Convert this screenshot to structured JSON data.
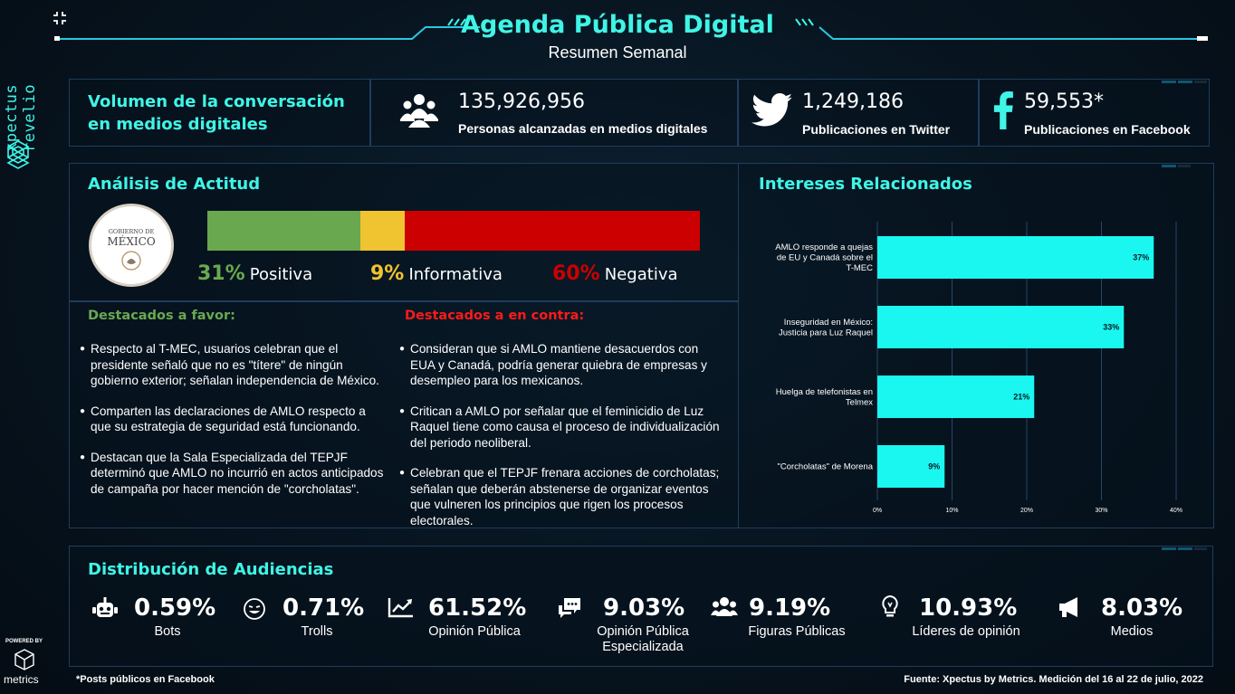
{
  "brand": {
    "name": "xpectus revelio",
    "powered_by": "POWERED BY",
    "partner": "metrics"
  },
  "header": {
    "title": "Agenda Pública Digital",
    "subtitle": "Resumen Semanal"
  },
  "volume": {
    "heading_line1": "Volumen de la conversación",
    "heading_line2": "en medios digitales",
    "reach": {
      "value": "135,926,956",
      "label": "Personas alcanzadas en medios digitales",
      "icon": "people-group-icon"
    },
    "twitter": {
      "value": "1,249,186",
      "label": "Publicaciones en Twitter",
      "icon": "twitter-icon"
    },
    "facebook": {
      "value": "59,553*",
      "label": "Publicaciones en Facebook",
      "icon": "facebook-icon"
    }
  },
  "attitude": {
    "heading": "Análisis de Actitud",
    "seal_line1": "GOBIERNO DE",
    "seal_line2": "MÉXICO",
    "positive": {
      "pct": "31%",
      "label": "Positiva",
      "value": 31,
      "color": "#6aa84f"
    },
    "informative": {
      "pct": "9%",
      "label": "Informativa",
      "value": 9,
      "color": "#f0c330"
    },
    "negative": {
      "pct": "60%",
      "label": "Negativa",
      "value": 60,
      "color": "#cc0000"
    },
    "favor_heading": "Destacados a favor:",
    "against_heading": "Destacados a en contra:",
    "favor_items": [
      "Respecto al T-MEC, usuarios celebran que el presidente señaló que no es \"títere\" de ningún gobierno exterior; señalan independencia de México.",
      "Comparten las declaraciones de AMLO respecto a que su estrategia de seguridad está funcionando.",
      "Destacan que la Sala Especializada del TEPJF determinó que AMLO no incurrió en actos anticipados de campaña por hacer mención de \"corcholatas\"."
    ],
    "against_items": [
      "Consideran que si AMLO mantiene desacuerdos con EUA y Canadá, podría generar quiebra de empresas y desempleo para los mexicanos.",
      "Critican a AMLO por señalar que el feminicidio de Luz Raquel tiene como causa el proceso de individualización del periodo neoliberal.",
      "Celebran que el TEPJF frenara acciones de corcholatas; señalan que deberán abstenerse de organizar eventos que vulneren los principios que rigen los procesos electorales."
    ]
  },
  "interests": {
    "heading": "Intereses Relacionados"
  },
  "chart_data": {
    "type": "bar",
    "orientation": "horizontal",
    "categories": [
      "AMLO responde a quejas de EU y Canadá sobre el T-MEC",
      "Inseguridad en México: Justicia para Luz Raquel",
      "Huelga de telefonistas en Telmex",
      "\"Corcholatas\" de Morena"
    ],
    "category_lines": [
      [
        "AMLO responde a quejas",
        "de EU y Canadá sobre el",
        "T-MEC"
      ],
      [
        "Inseguridad en México:",
        "Justicia para Luz Raquel"
      ],
      [
        "Huelga de telefonistas en",
        "Telmex"
      ],
      [
        "\"Corcholatas\" de Morena"
      ]
    ],
    "values": [
      37,
      33,
      21,
      9
    ],
    "data_labels": [
      "37%",
      "33%",
      "21%",
      "9%"
    ],
    "xlim": [
      0,
      40
    ],
    "ticks": [
      "0%",
      "10%",
      "20%",
      "30%",
      "40%"
    ],
    "grid": true,
    "bar_color": "#19f7f0"
  },
  "audience": {
    "heading": "Distribución de Audiencias",
    "items": [
      {
        "value": "0.59%",
        "label": "Bots",
        "icon": "robot-icon"
      },
      {
        "value": "0.71%",
        "label": "Trolls",
        "icon": "troll-face-icon"
      },
      {
        "value": "61.52%",
        "label": "Opinión Pública",
        "icon": "trend-chart-icon"
      },
      {
        "value": "9.03%",
        "label": "Opinión Pública Especializada",
        "label_line1": "Opinión Pública",
        "label_line2": "Especializada",
        "icon": "chat-bubbles-icon"
      },
      {
        "value": "9.19%",
        "label": "Figuras Públicas",
        "icon": "users-icon"
      },
      {
        "value": "10.93%",
        "label": "Líderes de opinión",
        "icon": "lightbulb-head-icon"
      },
      {
        "value": "8.03%",
        "label": "Medios",
        "icon": "megaphone-icon"
      }
    ]
  },
  "footer": {
    "note": "*Posts públicos en Facebook",
    "source": "Fuente: Xpectus by Metrics. Medición del 16 al 22 de julio, 2022"
  }
}
